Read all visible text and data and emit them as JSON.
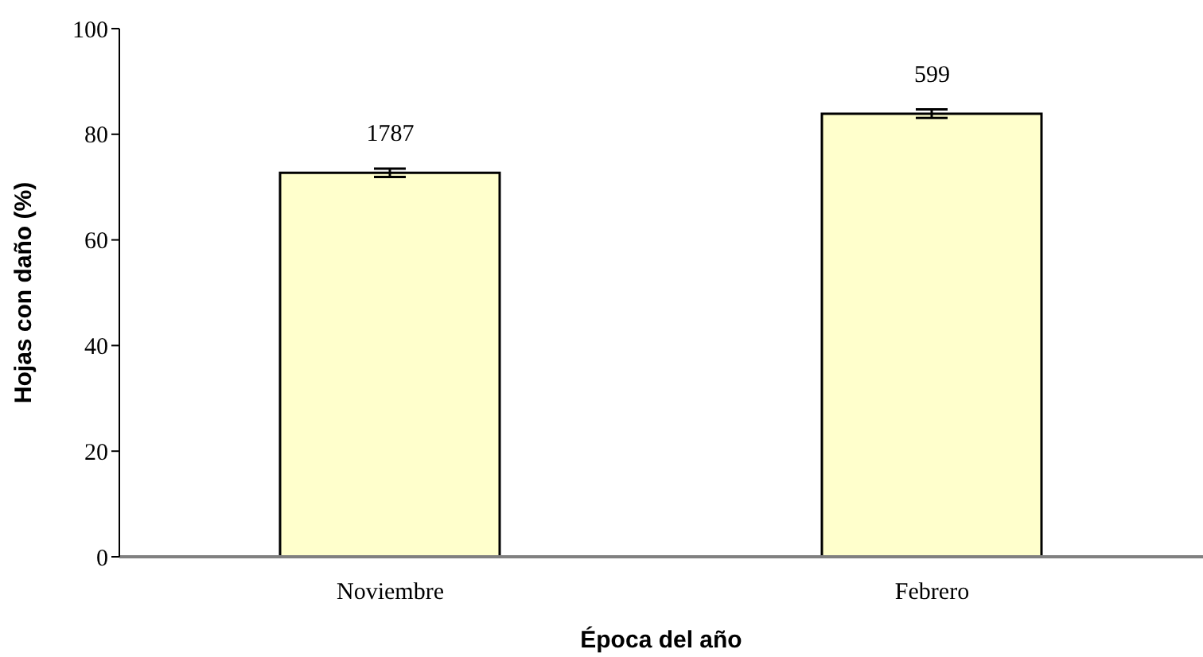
{
  "chart_data": {
    "type": "bar",
    "xlabel": "Época del año",
    "ylabel": "Hojas con daño (%)",
    "categories": [
      "Noviembre",
      "Febrero"
    ],
    "values": [
      72.7,
      83.9
    ],
    "errors": [
      0.8,
      0.8
    ],
    "color": "#ffffcc",
    "ylim": [
      0,
      100
    ],
    "yticks": [
      0,
      20,
      40,
      60,
      80,
      100
    ],
    "grid": false,
    "legend": false,
    "annotations": [
      "1787",
      "599"
    ]
  }
}
